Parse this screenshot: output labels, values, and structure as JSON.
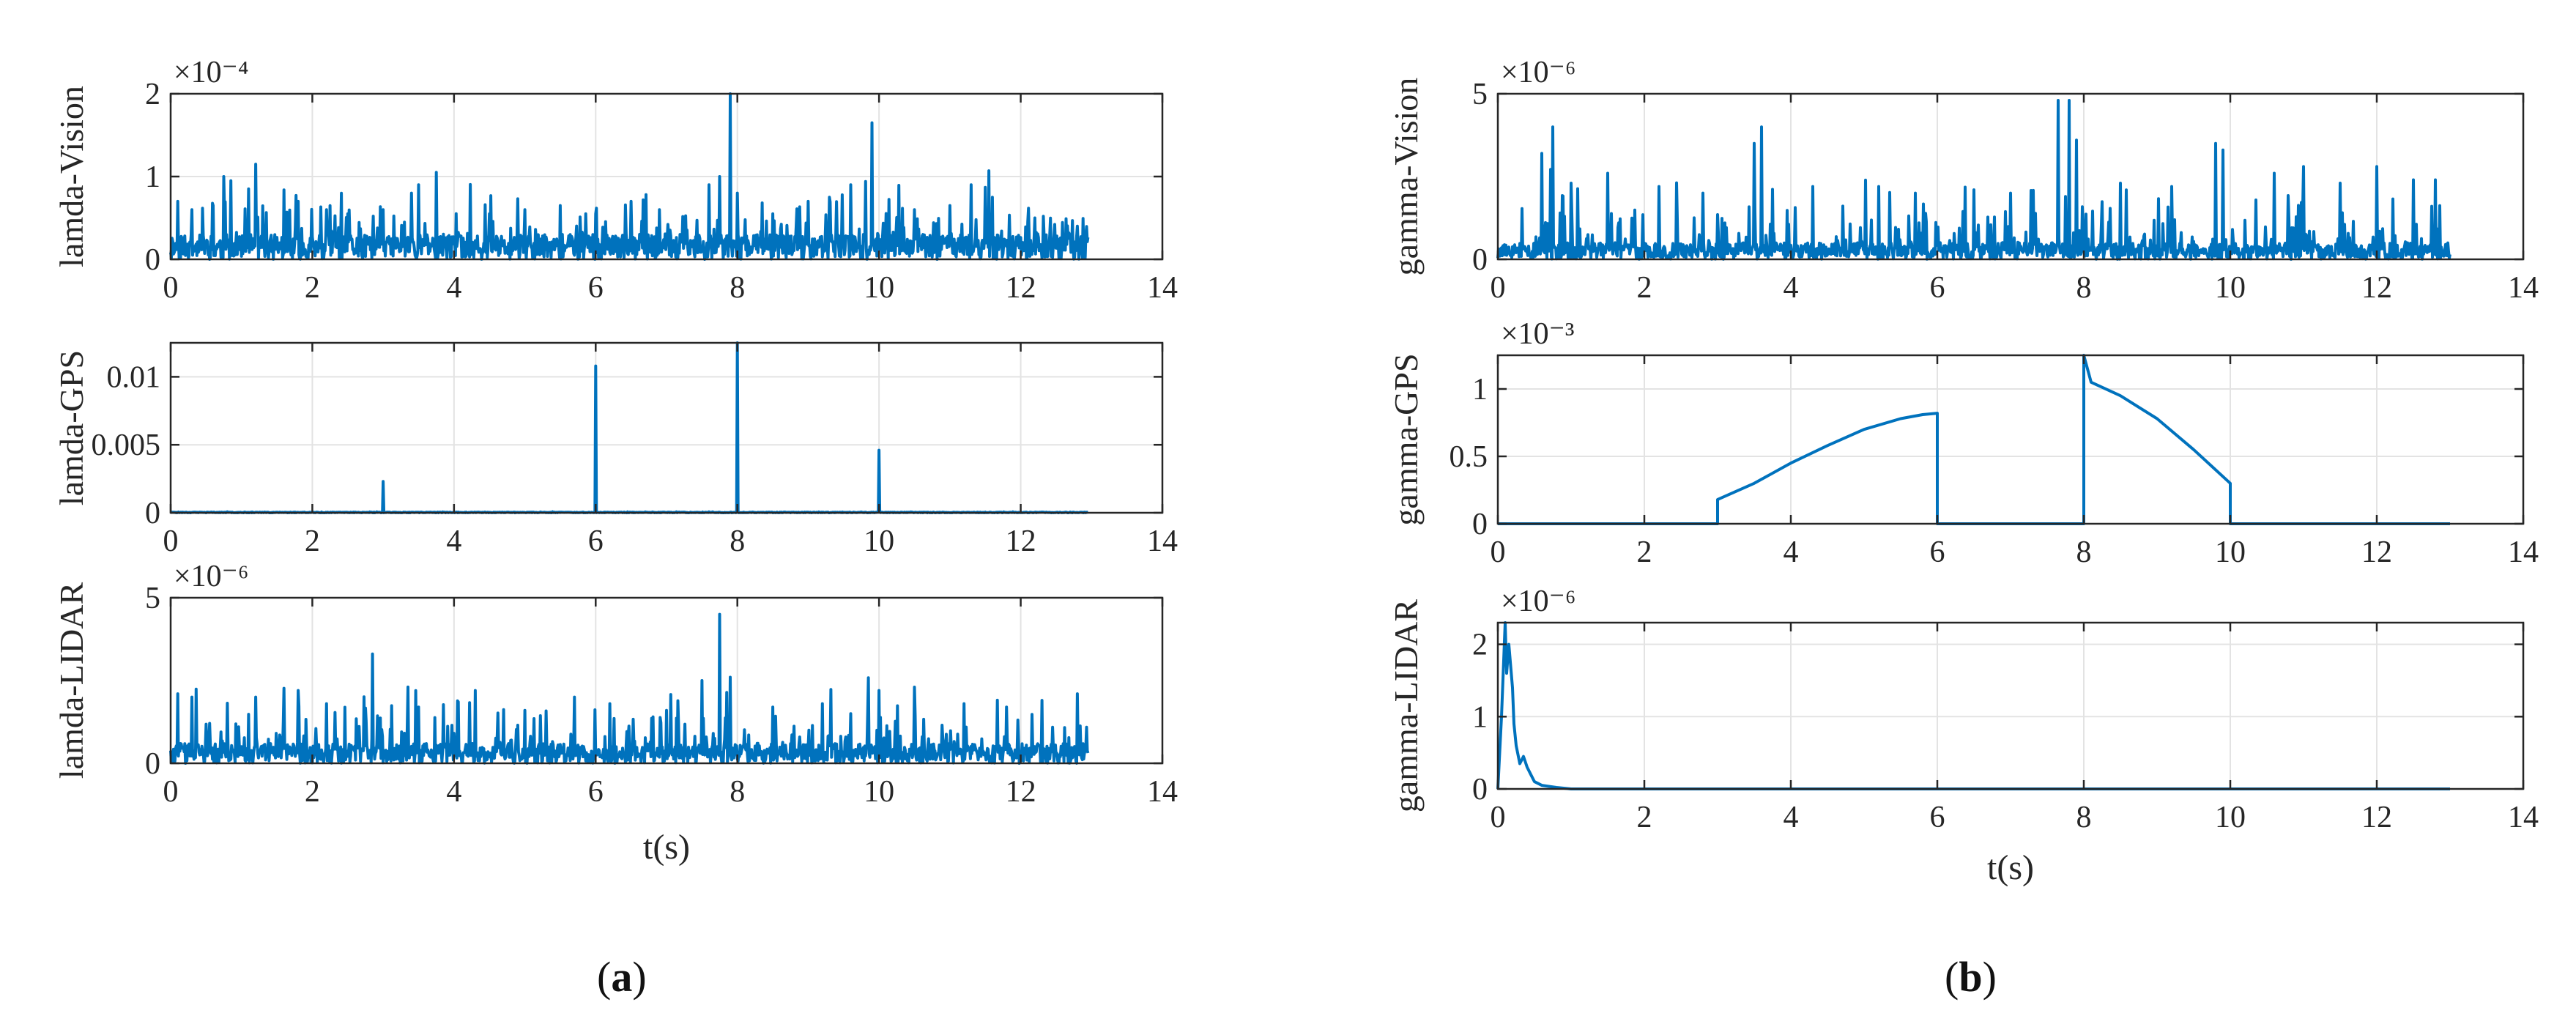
{
  "chart_data": [
    {
      "type": "line",
      "id": "lamda-vision",
      "ylabel": "lamda-Vision",
      "exponent_label": "×10⁻⁴",
      "scale": 0.0001,
      "xlim": [
        0,
        14
      ],
      "ylim": [
        0,
        2
      ],
      "xticks": [
        "0",
        "2",
        "4",
        "6",
        "8",
        "10",
        "12",
        "14"
      ],
      "yticks": [
        {
          "v": 0,
          "label": "0"
        },
        {
          "v": 1,
          "label": "1"
        },
        {
          "v": 2,
          "label": "2"
        }
      ],
      "baseline": 0.3,
      "noise": 0.4,
      "spikes": [
        [
          0.1,
          0.7
        ],
        [
          0.3,
          0.6
        ],
        [
          0.6,
          0.65
        ],
        [
          0.75,
          1.0
        ],
        [
          0.85,
          0.95
        ],
        [
          1.1,
          0.85
        ],
        [
          1.2,
          1.15
        ],
        [
          1.8,
          0.7
        ],
        [
          2.2,
          0.6
        ],
        [
          2.5,
          0.55
        ],
        [
          3.0,
          0.6
        ],
        [
          3.4,
          0.8
        ],
        [
          3.5,
          0.9
        ],
        [
          3.75,
          1.05
        ],
        [
          4.5,
          0.55
        ],
        [
          5.0,
          0.6
        ],
        [
          5.5,
          0.65
        ],
        [
          6.0,
          0.55
        ],
        [
          6.5,
          0.7
        ],
        [
          6.9,
          0.6
        ],
        [
          7.6,
          0.9
        ],
        [
          7.75,
          1.0
        ],
        [
          7.9,
          2.0
        ],
        [
          8.0,
          0.8
        ],
        [
          8.5,
          0.55
        ],
        [
          9.0,
          0.7
        ],
        [
          9.3,
          0.75
        ],
        [
          9.6,
          0.9
        ],
        [
          9.9,
          1.65
        ],
        [
          10.5,
          0.6
        ],
        [
          11.0,
          0.65
        ],
        [
          11.3,
          0.9
        ],
        [
          11.6,
          0.75
        ],
        [
          12.2,
          0.5
        ],
        [
          12.8,
          0.4
        ]
      ],
      "xend": 12.95,
      "seed": 11
    },
    {
      "type": "line",
      "id": "lamda-gps",
      "ylabel": "lamda-GPS",
      "exponent_label": "",
      "scale": 1,
      "xlim": [
        0,
        14
      ],
      "ylim": [
        0,
        0.0125
      ],
      "xticks": [
        "0",
        "2",
        "4",
        "6",
        "8",
        "10",
        "12",
        "14"
      ],
      "yticks": [
        {
          "v": 0,
          "label": "0"
        },
        {
          "v": 0.005,
          "label": "0.005"
        },
        {
          "v": 0.01,
          "label": "0.01"
        }
      ],
      "baseline": 5e-05,
      "noise": 2e-05,
      "spikes": [
        [
          3.0,
          0.0023
        ],
        [
          6.0,
          0.0108
        ],
        [
          8.0,
          0.0125
        ],
        [
          10.0,
          0.0046
        ]
      ],
      "xend": 12.95,
      "seed": 23
    },
    {
      "type": "line",
      "id": "lamda-lidar",
      "ylabel": "lamda-LIDAR",
      "exponent_label": "×10⁻⁶",
      "scale": 1e-06,
      "xlim": [
        0,
        14
      ],
      "ylim": [
        0,
        5
      ],
      "xticks": [
        "0",
        "2",
        "4",
        "6",
        "8",
        "10",
        "12",
        "14"
      ],
      "yticks": [
        {
          "v": 0,
          "label": "0"
        },
        {
          "v": 5,
          "label": "5"
        }
      ],
      "baseline": 0.6,
      "noise": 1.2,
      "spikes": [
        [
          0.1,
          2.1
        ],
        [
          0.3,
          2.0
        ],
        [
          1.2,
          2.0
        ],
        [
          1.8,
          2.2
        ],
        [
          2.2,
          1.8
        ],
        [
          2.85,
          3.3
        ],
        [
          3.5,
          1.7
        ],
        [
          4.3,
          2.2
        ],
        [
          5.0,
          1.6
        ],
        [
          5.7,
          2.0
        ],
        [
          6.2,
          1.8
        ],
        [
          7.0,
          1.6
        ],
        [
          7.5,
          2.5
        ],
        [
          7.75,
          4.5
        ],
        [
          7.9,
          2.6
        ],
        [
          8.5,
          1.7
        ],
        [
          9.2,
          1.8
        ],
        [
          9.6,
          1.5
        ],
        [
          10.0,
          2.2
        ],
        [
          10.5,
          2.3
        ],
        [
          11.2,
          1.8
        ],
        [
          11.8,
          1.7
        ],
        [
          12.3,
          1.9
        ],
        [
          12.8,
          2.1
        ]
      ],
      "xend": 12.95,
      "seed": 37
    },
    {
      "type": "line",
      "id": "gamma-vision",
      "ylabel": "gamma-Vision",
      "exponent_label": "×10⁻⁶",
      "scale": 1e-06,
      "xlim": [
        0,
        14
      ],
      "ylim": [
        0,
        5
      ],
      "xticks": [
        "0",
        "2",
        "4",
        "6",
        "8",
        "10",
        "12",
        "14"
      ],
      "yticks": [
        {
          "v": 0,
          "label": "0"
        },
        {
          "v": 5,
          "label": "5"
        }
      ],
      "baseline": 0.5,
      "noise": 1.3,
      "spikes": [
        [
          0.6,
          3.2
        ],
        [
          0.75,
          4.0
        ],
        [
          1.0,
          2.3
        ],
        [
          1.5,
          2.6
        ],
        [
          2.2,
          2.2
        ],
        [
          2.8,
          2.0
        ],
        [
          3.5,
          3.5
        ],
        [
          3.6,
          4.0
        ],
        [
          4.3,
          2.2
        ],
        [
          5.2,
          2.2
        ],
        [
          5.7,
          2.0
        ],
        [
          6.5,
          2.1
        ],
        [
          7.0,
          2.0
        ],
        [
          7.65,
          4.8
        ],
        [
          7.8,
          4.8
        ],
        [
          7.9,
          3.6
        ],
        [
          8.5,
          2.3
        ],
        [
          9.2,
          2.2
        ],
        [
          9.8,
          3.5
        ],
        [
          9.9,
          3.3
        ],
        [
          10.6,
          2.6
        ],
        [
          11.0,
          2.8
        ],
        [
          11.5,
          2.3
        ],
        [
          12.0,
          2.8
        ],
        [
          12.5,
          2.4
        ],
        [
          12.8,
          2.4
        ]
      ],
      "xend": 13.0,
      "seed": 53
    },
    {
      "type": "line",
      "id": "gamma-gps",
      "ylabel": "gamma-GPS",
      "exponent_label": "×10⁻³",
      "scale": 0.001,
      "xlim": [
        0,
        14
      ],
      "ylim": [
        0,
        1.25
      ],
      "xticks": [
        "0",
        "2",
        "4",
        "6",
        "8",
        "10",
        "12",
        "14"
      ],
      "yticks": [
        {
          "v": 0,
          "label": "0"
        },
        {
          "v": 0.5,
          "label": "0.5"
        },
        {
          "v": 1,
          "label": "1"
        }
      ],
      "segments": [
        {
          "x": [
            0,
            3.0
          ],
          "y": [
            0,
            0
          ]
        },
        {
          "x": [
            3.0,
            3.0,
            3.5,
            4.0,
            4.5,
            5.0,
            5.5,
            5.8,
            6.0,
            6.0
          ],
          "y": [
            0,
            0.18,
            0.3,
            0.45,
            0.58,
            0.7,
            0.78,
            0.81,
            0.82,
            0
          ]
        },
        {
          "x": [
            6.0,
            8.0
          ],
          "y": [
            0,
            0
          ]
        },
        {
          "x": [
            8.0,
            8.0,
            8.1,
            8.5,
            9.0,
            9.5,
            10.0,
            10.0
          ],
          "y": [
            0,
            1.25,
            1.05,
            0.95,
            0.78,
            0.55,
            0.3,
            0
          ]
        },
        {
          "x": [
            10.0,
            13.0
          ],
          "y": [
            0,
            0
          ]
        }
      ]
    },
    {
      "type": "line",
      "id": "gamma-lidar",
      "ylabel": "gamma-LIDAR",
      "exponent_label": "×10⁻⁶",
      "scale": 1e-06,
      "xlim": [
        0,
        14
      ],
      "ylim": [
        0,
        2.3
      ],
      "xticks": [
        "0",
        "2",
        "4",
        "6",
        "8",
        "10",
        "12",
        "14"
      ],
      "yticks": [
        {
          "v": 0,
          "label": "0"
        },
        {
          "v": 1,
          "label": "1"
        },
        {
          "v": 2,
          "label": "2"
        }
      ],
      "segments": [
        {
          "x": [
            0.0,
            0.05,
            0.1,
            0.12,
            0.15,
            0.2,
            0.22,
            0.25,
            0.3,
            0.35,
            0.4,
            0.45,
            0.5,
            0.6,
            0.8,
            1.0,
            13.0
          ],
          "y": [
            0.0,
            1.0,
            2.3,
            1.6,
            2.0,
            1.4,
            0.9,
            0.6,
            0.35,
            0.45,
            0.3,
            0.2,
            0.1,
            0.05,
            0.02,
            0.0,
            0.0
          ]
        }
      ]
    }
  ],
  "xlabel_a": "t(s)",
  "xlabel_b": "t(s)",
  "panel_labels": {
    "a": "a",
    "b": "b"
  }
}
